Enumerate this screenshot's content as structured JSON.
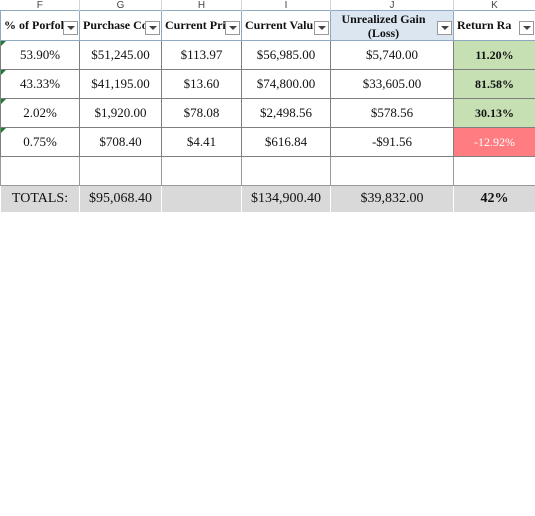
{
  "columns": [
    "F",
    "G",
    "H",
    "I",
    "J",
    "K"
  ],
  "headers": [
    "% of Porfoli",
    "Purchase Co",
    "Current Pri",
    "Current Valu",
    "Unrealized Gain (Loss)",
    "Return Ra"
  ],
  "rows": [
    [
      "53.90%",
      "$51,245.00",
      "$113.97",
      "$56,985.00",
      "$5,740.00",
      "11.20%"
    ],
    [
      "43.33%",
      "$41,195.00",
      "$13.60",
      "$74,800.00",
      "$33,605.00",
      "81.58%"
    ],
    [
      "2.02%",
      "$1,920.00",
      "$78.08",
      "$2,498.56",
      "$578.56",
      "30.13%"
    ],
    [
      "0.75%",
      "$708.40",
      "$4.41",
      "$616.84",
      "-$91.56",
      "-12.92%"
    ]
  ],
  "totals": {
    "label": "TOTALS:",
    "purchase_cost": "$95,068.40",
    "current_value": "$134,900.40",
    "unrealized_gain": "$39,832.00",
    "return_rate": "42%"
  }
}
